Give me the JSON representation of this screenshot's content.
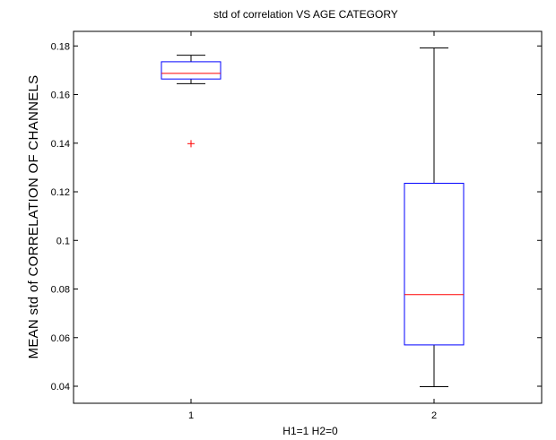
{
  "chart_data": {
    "type": "box",
    "title": "std of correlation VS AGE CATEGORY",
    "xlabel": "H1=1 H2=0",
    "ylabel": "MEAN std of CORRELATION OF CHANNELS",
    "categories": [
      "1",
      "2"
    ],
    "ylim": [
      0.033,
      0.186
    ],
    "yticks": [
      0.04,
      0.06,
      0.08,
      0.1,
      0.12,
      0.14,
      0.16,
      0.18
    ],
    "ytick_labels": [
      "0.04",
      "0.06",
      "0.08",
      "0.1",
      "0.12",
      "0.14",
      "0.16",
      "0.18"
    ],
    "boxes": [
      {
        "category": "1",
        "whisker_low": 0.1645,
        "q1": 0.1664,
        "median": 0.1687,
        "q3": 0.1735,
        "whisker_high": 0.1762,
        "outliers": [
          0.1398
        ]
      },
      {
        "category": "2",
        "whisker_low": 0.0398,
        "q1": 0.057,
        "median": 0.0777,
        "q3": 0.1235,
        "whisker_high": 0.1792,
        "outliers": []
      }
    ],
    "colors": {
      "box": "#0000ff",
      "median": "#ff0000",
      "whisker": "#000000",
      "outlier": "#ff0000",
      "axis": "#000000"
    }
  }
}
